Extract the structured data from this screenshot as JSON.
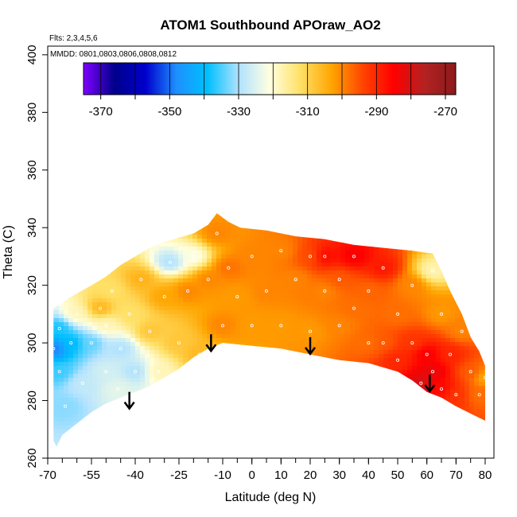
{
  "chart_data": {
    "type": "heatmap",
    "title": "ATOM1 Southbound APOraw_AO2",
    "annotations": [
      "Flts: 2,3,4,5,6",
      "MMDD: 0801,0803,0806,0808,0812"
    ],
    "xlabel": "Latitude (deg N)",
    "ylabel": "Theta (C)",
    "xlim": [
      -70,
      83
    ],
    "ylim": [
      260,
      403
    ],
    "x_ticks": [
      -70,
      -55,
      -40,
      -25,
      -10,
      0,
      10,
      20,
      30,
      40,
      50,
      60,
      70,
      80
    ],
    "x_tick_labels": [
      "-70",
      "-55",
      "-40",
      "-25",
      "-10",
      "0",
      "10",
      "20",
      "30",
      "40",
      "50",
      "60",
      "70",
      "80"
    ],
    "y_ticks": [
      260,
      280,
      300,
      320,
      340,
      360,
      380,
      400
    ],
    "y_tick_labels": [
      "260",
      "280",
      "300",
      "320",
      "340",
      "360",
      "380",
      "400"
    ],
    "colorbar": {
      "min": -375,
      "max": -267,
      "ticks": [
        -370,
        -350,
        -330,
        -310,
        -290,
        -270
      ],
      "tick_labels": [
        "-370",
        "-350",
        "-330",
        "-310",
        "-290",
        "-270"
      ],
      "colors": [
        "#7f00ff",
        "#00008b",
        "#0000cd",
        "#1e90ff",
        "#00bfff",
        "#b0e2ff",
        "#ffffe0",
        "#ffe066",
        "#ffa500",
        "#ff4500",
        "#ff0000",
        "#b22222",
        "#8b1a1a"
      ]
    },
    "data_region": {
      "top_boundary": [
        [
          -68,
          312
        ],
        [
          -62,
          316
        ],
        [
          -55,
          320
        ],
        [
          -50,
          323
        ],
        [
          -45,
          327
        ],
        [
          -40,
          330
        ],
        [
          -35,
          333
        ],
        [
          -30,
          335
        ],
        [
          -20,
          338
        ],
        [
          -15,
          341
        ],
        [
          -12,
          345
        ],
        [
          -8,
          342
        ],
        [
          -4,
          340
        ],
        [
          5,
          339
        ],
        [
          15,
          337
        ],
        [
          25,
          336
        ],
        [
          35,
          334
        ],
        [
          45,
          333
        ],
        [
          55,
          332
        ],
        [
          62,
          331
        ],
        [
          65,
          325
        ],
        [
          68,
          318
        ],
        [
          72,
          310
        ],
        [
          75,
          302
        ],
        [
          78,
          297
        ],
        [
          80,
          292
        ]
      ],
      "bottom_boundary": [
        [
          80,
          273
        ],
        [
          76,
          275
        ],
        [
          70,
          278
        ],
        [
          65,
          281
        ],
        [
          60,
          283
        ],
        [
          55,
          287
        ],
        [
          50,
          290
        ],
        [
          40,
          293
        ],
        [
          30,
          294
        ],
        [
          20,
          296
        ],
        [
          10,
          298
        ],
        [
          0,
          299
        ],
        [
          -10,
          300
        ],
        [
          -15,
          298
        ],
        [
          -20,
          295
        ],
        [
          -25,
          291
        ],
        [
          -30,
          288
        ],
        [
          -35,
          285
        ],
        [
          -40,
          283
        ],
        [
          -45,
          281
        ],
        [
          -50,
          279
        ],
        [
          -55,
          276
        ],
        [
          -60,
          272
        ],
        [
          -65,
          268
        ],
        [
          -67,
          264
        ],
        [
          -68,
          266
        ]
      ]
    },
    "field_points": [
      [
        -68,
        298,
        -350
      ],
      [
        -66,
        290,
        -336
      ],
      [
        -66,
        305,
        -338
      ],
      [
        -64,
        278,
        -332
      ],
      [
        -62,
        300,
        -340
      ],
      [
        -60,
        310,
        -318
      ],
      [
        -58,
        286,
        -328
      ],
      [
        -55,
        300,
        -334
      ],
      [
        -52,
        312,
        -305
      ],
      [
        -50,
        290,
        -326
      ],
      [
        -50,
        306,
        -318
      ],
      [
        -48,
        318,
        -312
      ],
      [
        -46,
        284,
        -324
      ],
      [
        -45,
        298,
        -330
      ],
      [
        -42,
        310,
        -312
      ],
      [
        -40,
        290,
        -330
      ],
      [
        -38,
        322,
        -305
      ],
      [
        -35,
        304,
        -308
      ],
      [
        -32,
        290,
        -318
      ],
      [
        -30,
        316,
        -303
      ],
      [
        -28,
        328,
        -330
      ],
      [
        -25,
        300,
        -308
      ],
      [
        -22,
        318,
        -300
      ],
      [
        -20,
        330,
        -322
      ],
      [
        -18,
        296,
        -306
      ],
      [
        -15,
        322,
        -300
      ],
      [
        -12,
        338,
        -300
      ],
      [
        -10,
        306,
        -300
      ],
      [
        -8,
        326,
        -298
      ],
      [
        -5,
        316,
        -302
      ],
      [
        0,
        306,
        -302
      ],
      [
        0,
        330,
        -300
      ],
      [
        5,
        318,
        -300
      ],
      [
        10,
        306,
        -302
      ],
      [
        10,
        332,
        -300
      ],
      [
        15,
        322,
        -300
      ],
      [
        20,
        304,
        -302
      ],
      [
        20,
        330,
        -295
      ],
      [
        25,
        318,
        -300
      ],
      [
        25,
        330,
        -286
      ],
      [
        30,
        306,
        -300
      ],
      [
        30,
        322,
        -296
      ],
      [
        35,
        312,
        -298
      ],
      [
        35,
        330,
        -284
      ],
      [
        40,
        300,
        -298
      ],
      [
        40,
        318,
        -297
      ],
      [
        45,
        326,
        -288
      ],
      [
        45,
        300,
        -296
      ],
      [
        50,
        310,
        -298
      ],
      [
        50,
        294,
        -290
      ],
      [
        55,
        320,
        -300
      ],
      [
        55,
        300,
        -292
      ],
      [
        58,
        286,
        -280
      ],
      [
        60,
        296,
        -284
      ],
      [
        62,
        290,
        -282
      ],
      [
        62,
        325,
        -318
      ],
      [
        65,
        310,
        -302
      ],
      [
        65,
        284,
        -286
      ],
      [
        68,
        296,
        -290
      ],
      [
        70,
        282,
        -292
      ],
      [
        72,
        304,
        -300
      ],
      [
        75,
        290,
        -296
      ],
      [
        78,
        282,
        -298
      ],
      [
        80,
        288,
        -304
      ]
    ],
    "arrows_at": [
      [
        -42,
        283
      ],
      [
        -14,
        303
      ],
      [
        20,
        302
      ],
      [
        61,
        289
      ]
    ]
  }
}
